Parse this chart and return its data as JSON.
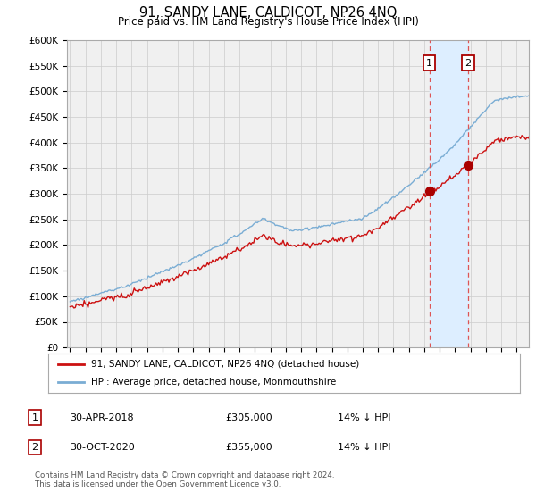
{
  "title": "91, SANDY LANE, CALDICOT, NP26 4NQ",
  "subtitle": "Price paid vs. HM Land Registry's House Price Index (HPI)",
  "footer": "Contains HM Land Registry data © Crown copyright and database right 2024.\nThis data is licensed under the Open Government Licence v3.0.",
  "legend_line1": "91, SANDY LANE, CALDICOT, NP26 4NQ (detached house)",
  "legend_line2": "HPI: Average price, detached house, Monmouthshire",
  "transaction1_date": "30-APR-2018",
  "transaction1_price": "£305,000",
  "transaction1_hpi": "14% ↓ HPI",
  "transaction2_date": "30-OCT-2020",
  "transaction2_price": "£355,000",
  "transaction2_hpi": "14% ↓ HPI",
  "hpi_color": "#7aadd4",
  "price_color": "#cc1111",
  "marker_color": "#aa0000",
  "dashed_color": "#dd5555",
  "shaded_color": "#ddeeff",
  "background_color": "#f0f0f0",
  "grid_color": "#cccccc",
  "ylim_min": 0,
  "ylim_max": 600000,
  "ytick_step": 50000,
  "year_start": 1995,
  "year_end": 2025,
  "t1_year": 2018.33,
  "t2_year": 2020.83,
  "t1_price": 305000,
  "t2_price": 355000
}
